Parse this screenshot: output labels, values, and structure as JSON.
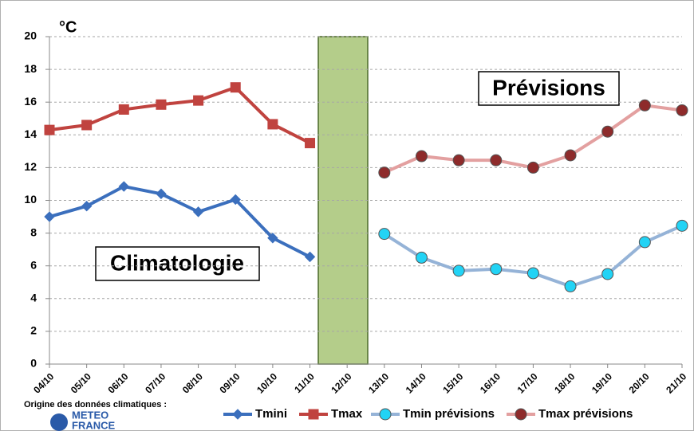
{
  "chart_data": {
    "type": "line",
    "unit_label": "°C",
    "annotations": [
      "Prévisions",
      "Climatologie"
    ],
    "source": "Origine des données climatiques :",
    "logo": [
      "METEO",
      "FRANCE"
    ],
    "categories": [
      "04/10",
      "05/10",
      "06/10",
      "07/10",
      "08/10",
      "09/10",
      "10/10",
      "11/10",
      "12/10",
      "13/10",
      "14/10",
      "15/10",
      "16/10",
      "17/10",
      "18/10",
      "19/10",
      "20/10",
      "21/10"
    ],
    "series": [
      {
        "name": "Tmini",
        "color": "#3b6fbd",
        "marker": "diamond",
        "marker_color": "#3b6fbd",
        "values": [
          9.0,
          9.65,
          10.85,
          10.4,
          9.3,
          10.05,
          7.7,
          6.55,
          null,
          null,
          null,
          null,
          null,
          null,
          null,
          null,
          null,
          null
        ]
      },
      {
        "name": "Tmax",
        "color": "#c0433f",
        "marker": "square",
        "marker_color": "#c0433f",
        "values": [
          14.3,
          14.6,
          15.55,
          15.85,
          16.1,
          16.9,
          14.65,
          13.5,
          null,
          null,
          null,
          null,
          null,
          null,
          null,
          null,
          null,
          null
        ]
      },
      {
        "name": "Tmin prévisions",
        "color": "#95b3d7",
        "marker": "circle",
        "marker_color": "#22d3f5",
        "values": [
          null,
          null,
          null,
          null,
          null,
          null,
          null,
          null,
          null,
          7.95,
          6.5,
          5.7,
          5.8,
          5.55,
          4.75,
          5.5,
          7.45,
          8.45
        ]
      },
      {
        "name": "Tmax prévisions",
        "color": "#e3a0a0",
        "marker": "circle",
        "marker_color": "#8e2b2b",
        "values": [
          null,
          null,
          null,
          null,
          null,
          null,
          null,
          null,
          null,
          11.7,
          12.7,
          12.45,
          12.45,
          12.0,
          12.75,
          14.2,
          15.8,
          15.5
        ]
      }
    ],
    "ylim": [
      0,
      20
    ],
    "yticks": [
      0,
      2,
      4,
      6,
      8,
      10,
      12,
      14,
      16,
      18,
      20
    ],
    "grid": true
  }
}
